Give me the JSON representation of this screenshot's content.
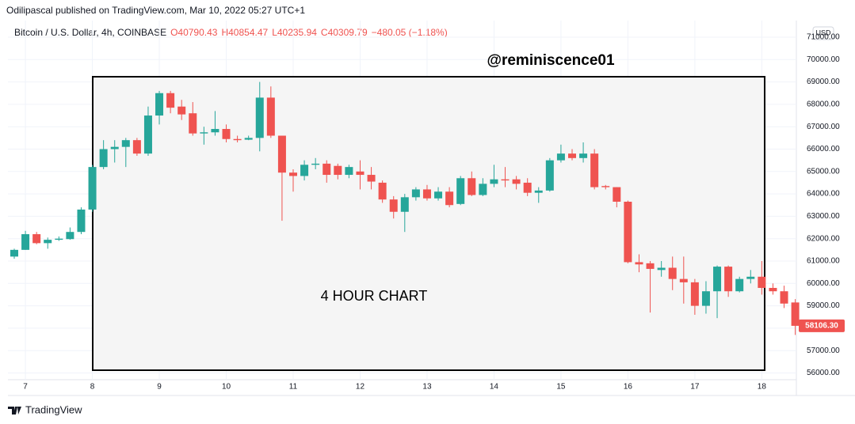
{
  "header": {
    "published": "Odilipascal published on TradingView.com, Mar 10, 2022 05:27 UTC+1",
    "symbol": "Bitcoin / U.S. Dollar, 4h, COINBASE",
    "open": "O40790.43",
    "high": "H40854.47",
    "low": "L40235.94",
    "close": "C40309.79",
    "change": "−480.05 (−1.18%)",
    "currency": "USD",
    "brand": "TradingView"
  },
  "chart_data": {
    "type": "candlestick",
    "annotations": [
      "@reminiscence01",
      "4 HOUR CHART"
    ],
    "up_color": "#26a69a",
    "down_color": "#ef5350",
    "grid": true,
    "categories": [
      null,
      "7",
      null,
      null,
      null,
      null,
      null,
      "8",
      null,
      null,
      null,
      null,
      null,
      "9",
      null,
      null,
      null,
      null,
      null,
      "10",
      null,
      null,
      null,
      null,
      null,
      "11",
      null,
      null,
      null,
      null,
      null,
      "12",
      null,
      null,
      null,
      null,
      null,
      "13",
      null,
      null,
      null,
      null,
      null,
      "14",
      null,
      null,
      null,
      null,
      null,
      "15",
      null,
      null,
      null,
      null,
      null,
      "16",
      null,
      null,
      null,
      null,
      null,
      "17",
      null,
      null,
      null,
      null,
      null,
      "18",
      null,
      null,
      null
    ],
    "open": [
      61200,
      61500,
      62200,
      61800,
      61950,
      61980,
      62300,
      63300,
      65200,
      66000,
      66100,
      66400,
      65800,
      67500,
      68500,
      67900,
      67600,
      66700,
      66750,
      66900,
      66450,
      66420,
      66500,
      68300,
      66600,
      64950,
      64800,
      65300,
      65350,
      65250,
      64850,
      65000,
      64850,
      64500,
      63750,
      63200,
      63850,
      64200,
      63800,
      64100,
      63550,
      64700,
      63950,
      64450,
      64650,
      64650,
      64500,
      64050,
      64150,
      65500,
      65800,
      65600,
      65800,
      64350,
      64300,
      63650,
      60950,
      60900,
      60600,
      60700,
      60200,
      60050,
      59000,
      59650,
      60750,
      59650,
      60200,
      60300,
      59800,
      59650,
      59150
    ],
    "high": [
      61550,
      62350,
      62300,
      62050,
      62100,
      62500,
      63400,
      65300,
      66400,
      66400,
      66500,
      66500,
      67900,
      68600,
      68600,
      68200,
      68100,
      67000,
      67700,
      67100,
      66600,
      66600,
      69000,
      68800,
      66600,
      65100,
      65500,
      65600,
      65500,
      65350,
      65300,
      65500,
      65200,
      64600,
      63900,
      64000,
      64300,
      64400,
      64300,
      64300,
      64800,
      65000,
      64700,
      65300,
      65200,
      64800,
      64700,
      64300,
      65600,
      66200,
      66000,
      66300,
      66000,
      64400,
      64300,
      63700,
      61300,
      61000,
      61000,
      61200,
      61200,
      60200,
      60100,
      60800,
      60800,
      60300,
      60600,
      61000,
      60000,
      59900,
      59300
    ],
    "low": [
      61100,
      61500,
      61750,
      61550,
      61900,
      61950,
      62200,
      63200,
      65100,
      65400,
      65200,
      65700,
      65700,
      67100,
      67600,
      67300,
      66600,
      66200,
      66600,
      66300,
      66300,
      66400,
      65900,
      66500,
      62800,
      64100,
      64600,
      65100,
      64500,
      64650,
      64700,
      64200,
      64200,
      63600,
      62900,
      62300,
      63700,
      63700,
      63700,
      63400,
      63500,
      63900,
      63900,
      64300,
      64300,
      64200,
      63900,
      63600,
      64100,
      65400,
      65500,
      65400,
      64200,
      64200,
      63400,
      60900,
      60500,
      58700,
      60300,
      59700,
      59100,
      58600,
      58650,
      58450,
      59400,
      59600,
      60000,
      59500,
      59500,
      58900,
      57700
    ],
    "close": [
      61500,
      62200,
      61800,
      61950,
      62000,
      62300,
      63300,
      65200,
      66000,
      66100,
      66400,
      65800,
      67500,
      68500,
      67850,
      67550,
      66700,
      66750,
      66900,
      66450,
      66400,
      66500,
      68300,
      66600,
      64950,
      64800,
      65300,
      65350,
      64850,
      64850,
      65200,
      64850,
      64550,
      63750,
      63200,
      63850,
      64200,
      63800,
      64100,
      63500,
      64700,
      63950,
      64450,
      64650,
      64600,
      64450,
      64050,
      64150,
      65500,
      65800,
      65600,
      65800,
      64300,
      64300,
      63650,
      60950,
      60850,
      60650,
      60700,
      60200,
      60050,
      59000,
      59650,
      60750,
      59650,
      60200,
      60300,
      59800,
      59650,
      59100,
      58106.3
    ],
    "last_price": {
      "value": 58106.3,
      "label": "58106.30"
    },
    "ylim": [
      55700,
      71600
    ],
    "yticks": [
      {
        "value": 56000,
        "label": "56000.00"
      },
      {
        "value": 57000,
        "label": "57000.00"
      },
      {
        "value": 58000,
        "label": "58000.00"
      },
      {
        "value": 59000,
        "label": "59000.00"
      },
      {
        "value": 60000,
        "label": "60000.00"
      },
      {
        "value": 61000,
        "label": "61000.00"
      },
      {
        "value": 62000,
        "label": "62000.00"
      },
      {
        "value": 63000,
        "label": "63000.00"
      },
      {
        "value": 64000,
        "label": "64000.00"
      },
      {
        "value": 65000,
        "label": "65000.00"
      },
      {
        "value": 66000,
        "label": "66000.00"
      },
      {
        "value": 67000,
        "label": "67000.00"
      },
      {
        "value": 68000,
        "label": "68000.00"
      },
      {
        "value": 69000,
        "label": "69000.00"
      },
      {
        "value": 70000,
        "label": "70000.00"
      },
      {
        "value": 71000,
        "label": "71000.00"
      }
    ]
  }
}
